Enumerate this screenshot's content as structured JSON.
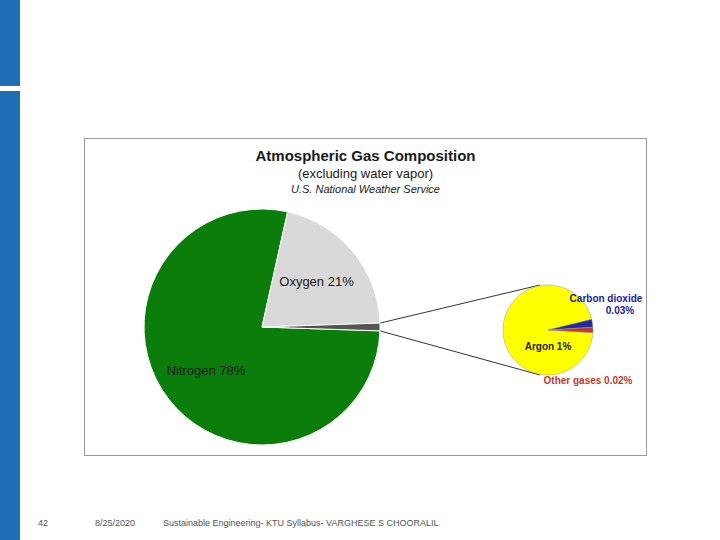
{
  "title": "Atmospheric Gas Composition",
  "subtitle": "(excluding water vapor)",
  "source": "U.S. National Weather Service",
  "chart_data": [
    {
      "type": "pie",
      "categories": [
        "Nitrogen 78%",
        "Oxygen 21%",
        null
      ],
      "values": [
        78,
        21,
        1.05
      ],
      "colors": [
        "#0b7d0b",
        "#d9d9d9",
        "#555555"
      ]
    },
    {
      "type": "pie",
      "categories": [
        "Argon 1%",
        "Carbon dioxide 0.03%",
        "Other gases 0.02%"
      ],
      "values": [
        1,
        0.03,
        0.02
      ],
      "colors": [
        "#ffff00",
        "#1f2aa8",
        "#c0392b"
      ]
    }
  ],
  "footer": {
    "page": 42,
    "date": "8/25/2020",
    "text": "Sustainable Engineering- KTU Syllabus- VARGHESE S CHOORALIL"
  }
}
